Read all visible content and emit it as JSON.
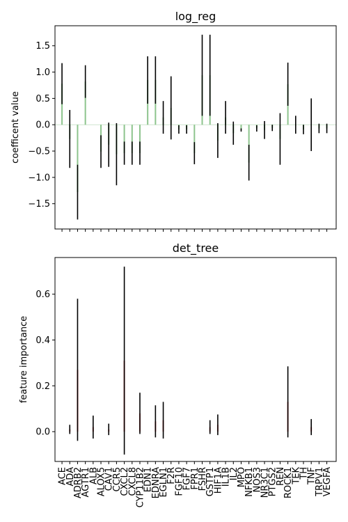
{
  "chart_data": [
    {
      "type": "bar",
      "title": "log_reg",
      "xlabel": "",
      "ylabel": "coefficent value",
      "ylim": [
        -1.98,
        1.88
      ],
      "yticks": [
        -1.5,
        -1.0,
        -0.5,
        0.0,
        0.5,
        1.0,
        1.5
      ],
      "ytick_labels": [
        "−1.5",
        "−1.0",
        "−0.5",
        "0.0",
        "0.5",
        "1.0",
        "1.5"
      ],
      "show_xtick_labels": false,
      "bar_color": "#8dc48d",
      "error_color": "#000000",
      "zero_line_color": "#cfe5cf",
      "categories": [
        "ACE",
        "ADA",
        "ADRB2",
        "AGTR1",
        "ALB",
        "ALOX5",
        "CAV1",
        "CCR5",
        "CXCL2",
        "CXCL8",
        "CYP11B2",
        "EDN1",
        "EDNRA",
        "EGLN1",
        "F2R",
        "FGF10",
        "FGF7",
        "FPR1",
        "FSHR",
        "GSTP1",
        "HIF1A",
        "IL1B",
        "IL2",
        "MPO",
        "NFKB1",
        "NOS3",
        "NR3C1",
        "PTGS2",
        "REN",
        "ROCK1",
        "TEK",
        "TH",
        "TNF",
        "TRPV1",
        "VEGFA"
      ],
      "values": [
        0.78,
        -0.27,
        -1.28,
        0.82,
        0,
        -0.51,
        -0.38,
        -0.56,
        -0.54,
        -0.54,
        -0.54,
        0.85,
        0.85,
        0.14,
        0.32,
        -0.09,
        -0.09,
        -0.54,
        0.94,
        0.94,
        -0.3,
        0.14,
        -0.16,
        -0.1,
        -0.72,
        -0.07,
        -0.1,
        -0.06,
        -0.27,
        0.77,
        0,
        -0.09,
        0,
        -0.07,
        -0.07
      ],
      "error": [
        0.39,
        0.55,
        0.52,
        0.31,
        0,
        0.31,
        0.42,
        0.59,
        0.22,
        0.22,
        0.22,
        0.45,
        0.45,
        0.31,
        0.6,
        0.08,
        0.08,
        0.21,
        0.77,
        0.77,
        0.33,
        0.31,
        0.22,
        0.03,
        0.34,
        0.06,
        0.17,
        0.06,
        0.49,
        0.41,
        0.17,
        0.09,
        0.5,
        0.09,
        0.09
      ]
    },
    {
      "type": "bar",
      "title": "det_tree",
      "xlabel": "",
      "ylabel": "feature importance",
      "ylim": [
        -0.13,
        0.76
      ],
      "yticks": [
        0.0,
        0.2,
        0.4,
        0.6
      ],
      "ytick_labels": [
        "0.0",
        "0.2",
        "0.4",
        "0.6"
      ],
      "show_xtick_labels": true,
      "bar_color": "#e06a6a",
      "error_color": "#000000",
      "categories": [
        "ACE",
        "ADA",
        "ADRB2",
        "AGTR1",
        "ALB",
        "ALOX5",
        "CAV1",
        "CCR5",
        "CXCL2",
        "CXCL8",
        "CYP11B2",
        "EDN1",
        "EDNRA",
        "EGLN1",
        "F2R",
        "FGF10",
        "FGF7",
        "FPR1",
        "FSHR",
        "GSTP1",
        "HIF1A",
        "IL1B",
        "IL2",
        "MPO",
        "NFKB1",
        "NOS3",
        "NR3C1",
        "PTGS2",
        "REN",
        "ROCK1",
        "TEK",
        "TH",
        "TNF",
        "TRPV1",
        "VEGFA"
      ],
      "values": [
        0,
        0.01,
        0.27,
        0,
        0.02,
        0,
        0.01,
        0,
        0.31,
        0,
        0.08,
        0,
        0.045,
        0.05,
        0,
        0,
        0,
        0,
        0,
        0.02,
        0.03,
        0,
        0,
        0,
        0,
        0,
        0,
        0,
        0,
        0.13,
        0,
        0,
        0.02,
        0,
        0
      ],
      "error": [
        0,
        0.02,
        0.31,
        0,
        0.05,
        0,
        0.025,
        0,
        0.41,
        0,
        0.09,
        0,
        0.07,
        0.08,
        0,
        0,
        0,
        0,
        0,
        0.03,
        0.045,
        0,
        0,
        0,
        0,
        0,
        0,
        0,
        0,
        0.155,
        0,
        0,
        0.035,
        0,
        0
      ]
    }
  ]
}
